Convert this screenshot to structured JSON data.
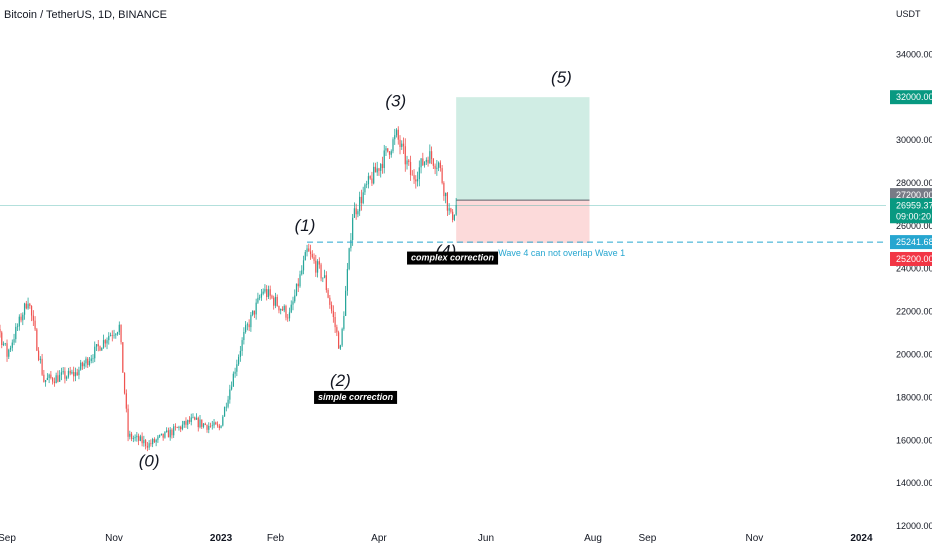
{
  "header": {
    "title": "Bitcoin / TetherUS, 1D, BINANCE",
    "unit": "USDT"
  },
  "chart_data": {
    "type": "candlestick",
    "x_ticks": [
      "Sep",
      "Nov",
      "2023",
      "Feb",
      "Apr",
      "Jun",
      "Aug",
      "Sep",
      "Nov",
      "2024"
    ],
    "y_ticks": [
      "12000.00",
      "14000.00",
      "16000.00",
      "18000.00",
      "20000.00",
      "22000.00",
      "24000.00",
      "26000.00",
      "28000.00",
      "30000.00",
      "32000.00",
      "34000.00"
    ],
    "ylim": [
      11600,
      36000
    ],
    "key_points": [
      {
        "date": "2022-08-15",
        "price": 24200
      },
      {
        "date": "2022-09-01",
        "price": 20000
      },
      {
        "date": "2022-09-13",
        "price": 22600
      },
      {
        "date": "2022-09-22",
        "price": 18800
      },
      {
        "date": "2022-10-10",
        "price": 19100
      },
      {
        "date": "2022-10-29",
        "price": 20900
      },
      {
        "date": "2022-11-04",
        "price": 21300
      },
      {
        "date": "2022-11-09",
        "price": 16200
      },
      {
        "date": "2022-11-21",
        "price": 15800
      },
      {
        "date": "2022-12-15",
        "price": 16900
      },
      {
        "date": "2022-12-31",
        "price": 16550
      },
      {
        "date": "2023-01-14",
        "price": 20900
      },
      {
        "date": "2023-01-25",
        "price": 23000
      },
      {
        "date": "2023-02-09",
        "price": 21800
      },
      {
        "date": "2023-02-19",
        "price": 24800
      },
      {
        "date": "2023-03-01",
        "price": 23500
      },
      {
        "date": "2023-03-10",
        "price": 20200
      },
      {
        "date": "2023-03-17",
        "price": 26500
      },
      {
        "date": "2023-03-25",
        "price": 27800
      },
      {
        "date": "2023-04-11",
        "price": 30200
      },
      {
        "date": "2023-04-20",
        "price": 28200
      },
      {
        "date": "2023-04-29",
        "price": 29300
      },
      {
        "date": "2023-05-05",
        "price": 28900
      },
      {
        "date": "2023-05-12",
        "price": 26300
      },
      {
        "date": "2023-05-15",
        "price": 26959.37
      }
    ],
    "waves": [
      {
        "label": "(0)",
        "date": "2022-11-21",
        "price": 15800
      },
      {
        "label": "(1)",
        "date": "2023-02-19",
        "price": 25100
      },
      {
        "label": "(2)",
        "date": "2023-03-10",
        "price": 19700
      },
      {
        "label": "(3)",
        "date": "2023-04-14",
        "price": 31000
      },
      {
        "label": "(4)",
        "date": "2023-05-12",
        "price": 25400
      },
      {
        "label": "(5)",
        "date": "2023-07-14",
        "price": 32200
      }
    ],
    "position": {
      "start_date": "2023-05-15",
      "end_date": "2023-07-30",
      "entry": 27200,
      "target": 32000,
      "stop": 25200
    },
    "levels": {
      "wave1_high": 25241.68,
      "current": 26959.37
    },
    "price_labels": {
      "target": "32000.00",
      "entry": "27200.00",
      "current": "26959.37",
      "countdown": "09:00:20",
      "wave1": "25241.68",
      "stop": "25200.00"
    },
    "annotations": {
      "simple": "simple correction",
      "complex": "complex correction",
      "warning": "Wave 4 can not overlap Wave 1"
    },
    "colors": {
      "up": "#26a69a",
      "down": "#ef5350",
      "target_zone": "#b7e4d6",
      "stop_zone": "#fcd4d4",
      "target_label": "#089981",
      "entry_label": "#787b86",
      "stop_label": "#f23645",
      "wave1_line": "#26a6d0"
    }
  }
}
